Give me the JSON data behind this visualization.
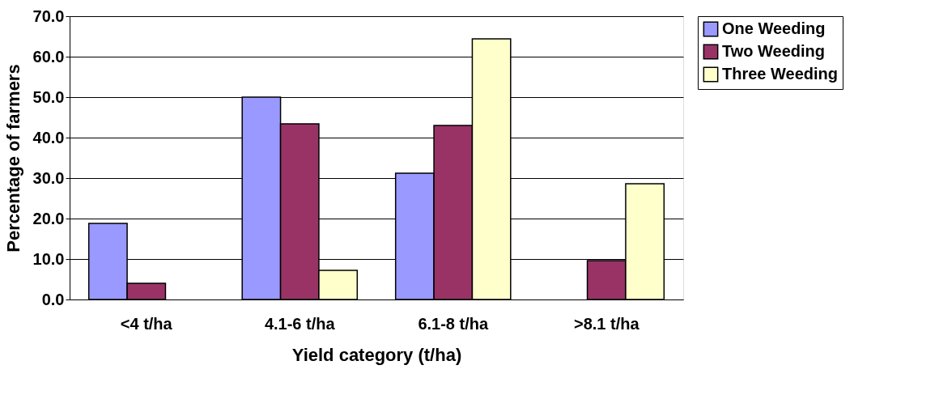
{
  "chart_data": {
    "type": "bar",
    "xlabel": "Yield category (t/ha)",
    "ylabel": "Percentage of farmers",
    "categories": [
      "<4 t/ha",
      "4.1-6 t/ha",
      "6.1-8 t/ha",
      ">8.1 t/ha"
    ],
    "series": [
      {
        "name": "One Weeding",
        "color": "#9999ff",
        "values": [
          18.8,
          50.0,
          31.2,
          null
        ]
      },
      {
        "name": "Two Weeding",
        "color": "#993366",
        "values": [
          4.0,
          43.4,
          43.0,
          9.6
        ]
      },
      {
        "name": "Three Weeding",
        "color": "#ffffcc",
        "values": [
          null,
          7.2,
          64.4,
          28.6
        ]
      }
    ],
    "ylim": [
      0,
      70
    ],
    "yticks": [
      {
        "value": 0,
        "label": "0.0"
      },
      {
        "value": 10,
        "label": "10.0"
      },
      {
        "value": 20,
        "label": "20.0"
      },
      {
        "value": 30,
        "label": "30.0"
      },
      {
        "value": 40,
        "label": "40.0"
      },
      {
        "value": 50,
        "label": "50.0"
      },
      {
        "value": 60,
        "label": "60.0"
      },
      {
        "value": 70,
        "label": "70.0"
      }
    ],
    "grid": "y",
    "legend": "right"
  }
}
